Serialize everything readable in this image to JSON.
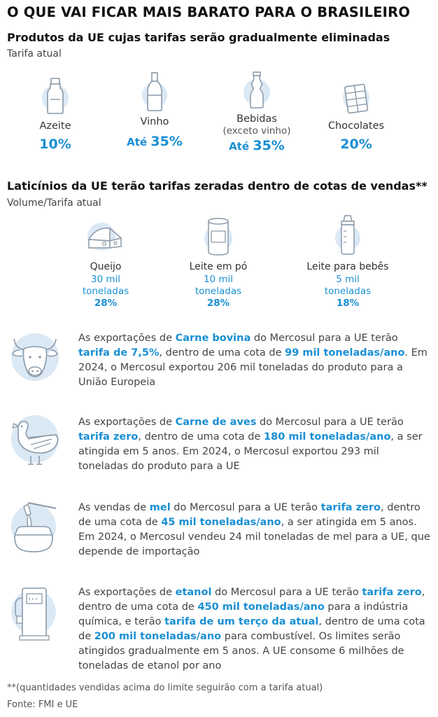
{
  "title": "O QUE VAI FICAR MAIS BARATO PARA O BRASILEIRO",
  "section1": {
    "title": "Produtos da UE cujas tarifas serão gradualmente eliminadas",
    "subtitle": "Tarifa atual",
    "products": [
      {
        "icon": "olive-oil-bottle-icon",
        "name": "Azeite",
        "note": "",
        "prefix": "",
        "value": "10%"
      },
      {
        "icon": "wine-bottle-icon",
        "name": "Vinho",
        "note": "",
        "prefix": "Até ",
        "value": "35%"
      },
      {
        "icon": "soda-bottle-icon",
        "name": "Bebidas",
        "note": "(exceto vinho)",
        "prefix": "Até ",
        "value": "35%"
      },
      {
        "icon": "chocolate-bar-icon",
        "name": "Chocolates",
        "note": "",
        "prefix": "",
        "value": "20%"
      }
    ]
  },
  "section2": {
    "title": "Laticínios da UE terão tarifas zeradas dentro de cotas de vendas**",
    "subtitle": "Volume/Tarifa atual",
    "items": [
      {
        "icon": "cheese-icon",
        "name": "Queijo",
        "volume": "30 mil",
        "unit": "toneladas",
        "rate": "28%"
      },
      {
        "icon": "milk-powder-can-icon",
        "name": "Leite em pó",
        "volume": "10 mil",
        "unit": "toneladas",
        "rate": "28%"
      },
      {
        "icon": "baby-bottle-icon",
        "name": "Leite para bebês",
        "volume": "5 mil",
        "unit": "toneladas",
        "rate": "18%"
      }
    ]
  },
  "blocks": [
    {
      "icon": "bull-head-icon",
      "parts": [
        {
          "t": "As exportações de ",
          "h": false
        },
        {
          "t": "Carne bovina",
          "h": true
        },
        {
          "t": " do Mercosul para a UE terão ",
          "h": false
        },
        {
          "t": "tarifa de 7,5%",
          "h": true
        },
        {
          "t": ", dentro de uma cota de ",
          "h": false
        },
        {
          "t": "99 mil toneladas/ano",
          "h": true
        },
        {
          "t": ". Em 2024, o Mercosul exportou 206 mil toneladas do produto para a União Europeia",
          "h": false
        }
      ]
    },
    {
      "icon": "chicken-icon",
      "parts": [
        {
          "t": "As exportações de ",
          "h": false
        },
        {
          "t": "Carne de aves",
          "h": true
        },
        {
          "t": " do Mercosul para a UE terão ",
          "h": false
        },
        {
          "t": "tarifa zero",
          "h": true
        },
        {
          "t": ", dentro de uma cota de ",
          "h": false
        },
        {
          "t": "180 mil toneladas/ano",
          "h": true
        },
        {
          "t": ", a ser atingida em 5 anos. Em 2024, o Mercosul exportou 293 mil toneladas do produto para a UE",
          "h": false
        }
      ]
    },
    {
      "icon": "honey-pot-icon",
      "parts": [
        {
          "t": "As vendas de ",
          "h": false
        },
        {
          "t": "mel",
          "h": true
        },
        {
          "t": " do Mercosul para a UE terão ",
          "h": false
        },
        {
          "t": "tarifa zero",
          "h": true
        },
        {
          "t": ", dentro de uma cota de ",
          "h": false
        },
        {
          "t": "45 mil toneladas/ano",
          "h": true
        },
        {
          "t": ", a ser atingida em 5 anos. Em 2024, o Mercosul vendeu 24 mil toneladas de mel para a UE, que depende de importação",
          "h": false
        }
      ]
    },
    {
      "icon": "fuel-pump-icon",
      "parts": [
        {
          "t": "As exportações de ",
          "h": false
        },
        {
          "t": "etanol",
          "h": true
        },
        {
          "t": " do Mercosul para a UE terão ",
          "h": false
        },
        {
          "t": "tarifa zero",
          "h": true
        },
        {
          "t": ", dentro de uma cota de ",
          "h": false
        },
        {
          "t": "450 mil toneladas/ano",
          "h": true
        },
        {
          "t": " para a indústria química, e terão ",
          "h": false
        },
        {
          "t": "tarifa de um terço da atual",
          "h": true
        },
        {
          "t": ", dentro de uma cota de ",
          "h": false
        },
        {
          "t": "200 mil toneladas/ano",
          "h": true
        },
        {
          "t": " para combustível. Os limites serão atingidos gradualmente em 5 anos. A UE consome 6 milhões de toneladas de etanol por ano",
          "h": false
        }
      ]
    }
  ],
  "footnote": "**(quantidades vendidas acima do limite seguirão com a tarifa  atual)",
  "source": "Fonte: FMI e UE",
  "colors": {
    "accent": "#1a8fd3",
    "icon_fill": "#dbe9f5",
    "icon_stroke": "#8a99a8"
  }
}
